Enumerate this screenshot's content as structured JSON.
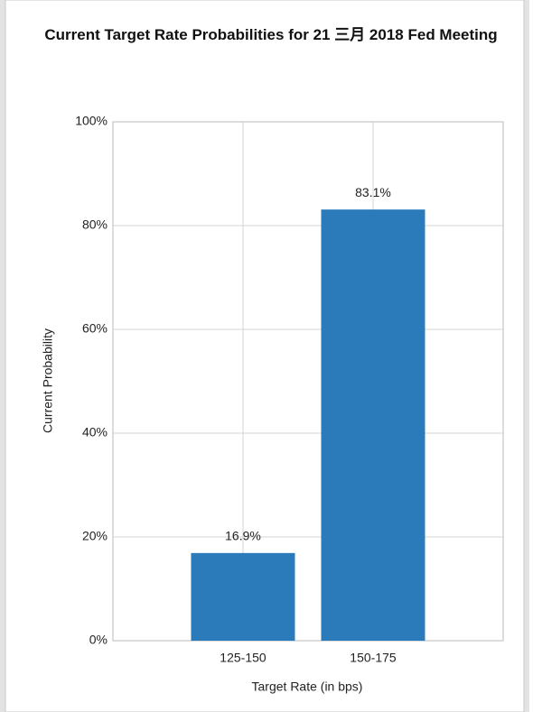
{
  "chart_data": {
    "type": "bar",
    "title": "Current Target Rate Probabilities for 21 三月 2018  Fed Meeting",
    "x_label": "Target Rate (in bps)",
    "y_label": "Current Probability",
    "categories": [
      "125-150",
      "150-175"
    ],
    "values": [
      16.9,
      83.1
    ],
    "value_labels": [
      "16.9%",
      "83.1%"
    ],
    "color": "#2b7bba",
    "ylim": [
      0,
      100
    ],
    "yticks": [
      {
        "value": 0,
        "label": "0%"
      },
      {
        "value": 20,
        "label": "20%"
      },
      {
        "value": 40,
        "label": "40%"
      },
      {
        "value": 60,
        "label": "60%"
      },
      {
        "value": 80,
        "label": "80%"
      },
      {
        "value": 100,
        "label": "100%"
      }
    ],
    "grid": true
  }
}
